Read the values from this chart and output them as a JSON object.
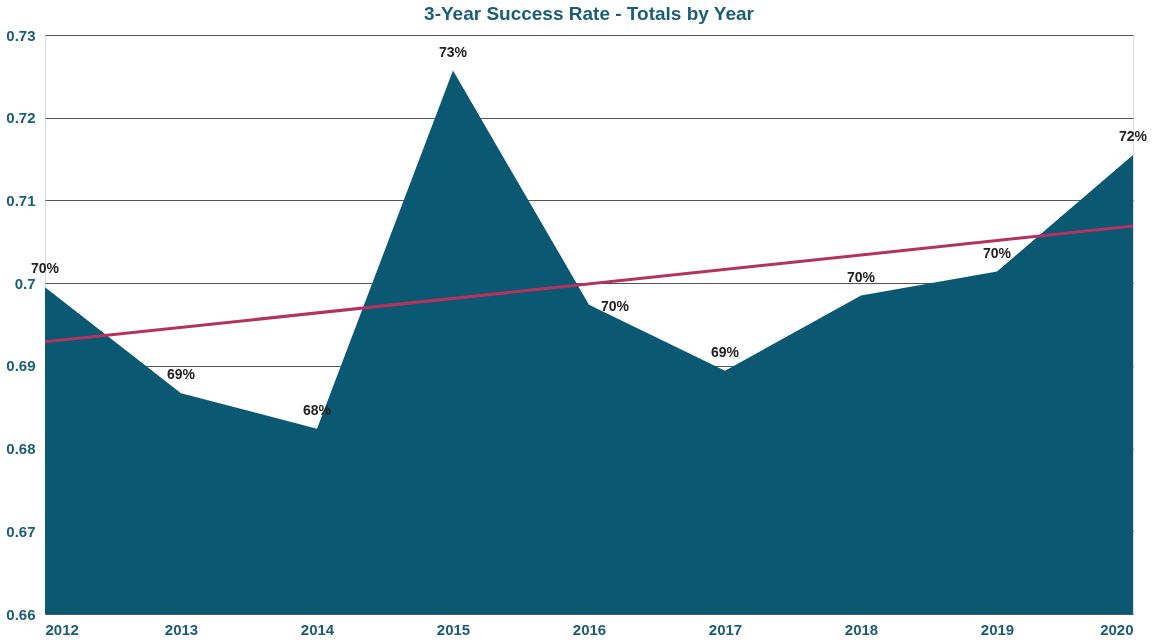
{
  "chart_data": {
    "type": "area",
    "title": "3-Year Success Rate - Totals by Year",
    "x": [
      2012,
      2013,
      2014,
      2015,
      2016,
      2017,
      2018,
      2019,
      2020
    ],
    "series": [
      {
        "color": "#0b5873",
        "values": [
          0.6995,
          0.6867,
          0.6824,
          0.7257,
          0.6974,
          0.6894,
          0.6985,
          0.7014,
          0.7155
        ],
        "value_labels": [
          "70%",
          "69%",
          "68%",
          "73%",
          "70%",
          "69%",
          "70%",
          "70%",
          "72%"
        ]
      },
      {
        "type": "line",
        "color": "#b5325f",
        "x": [
          2012,
          2020
        ],
        "values": [
          0.6929,
          0.7069
        ]
      }
    ],
    "xlim": [
      2012,
      2020
    ],
    "xticks": [
      2012,
      2013,
      2014,
      2015,
      2016,
      2017,
      2018,
      2019,
      2020
    ],
    "ylim": [
      0.66,
      0.73
    ],
    "yticks": [
      0.66,
      0.67,
      0.68,
      0.69,
      0.7,
      0.71,
      0.72,
      0.73
    ],
    "grid": "y"
  }
}
